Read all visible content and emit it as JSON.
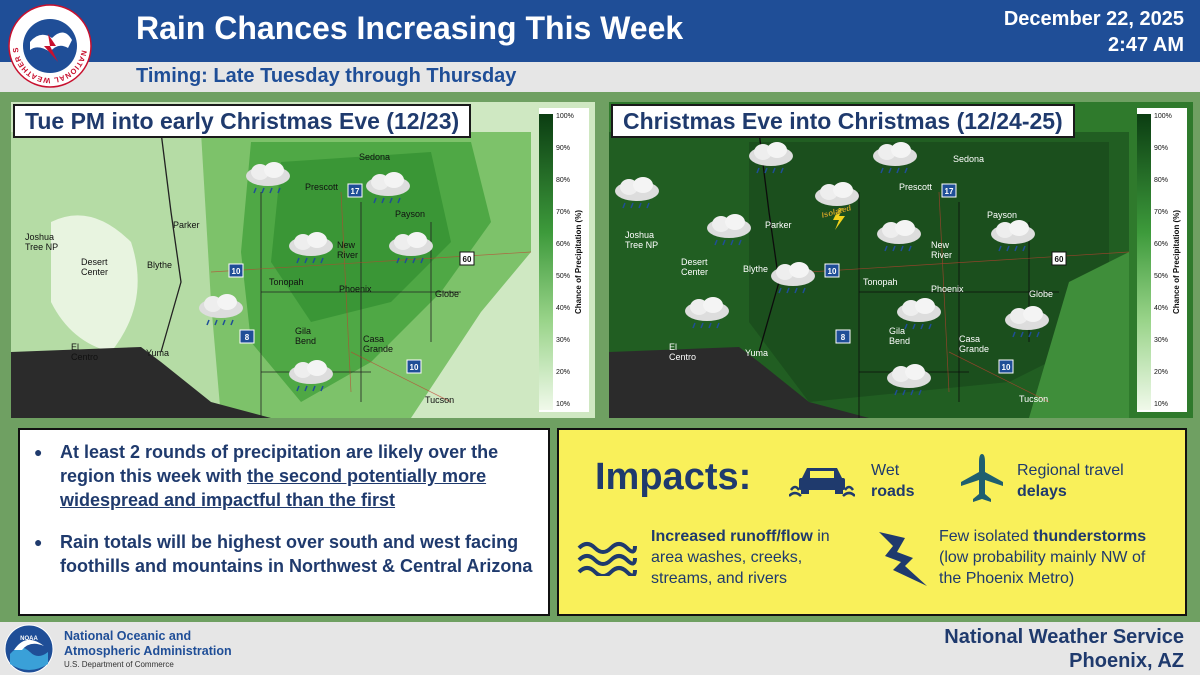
{
  "header": {
    "logo_text": "NATIONAL WEATHER SERVICE",
    "title": "Rain Chances Increasing This Week",
    "date": "December 22, 2025",
    "time": "2:47 AM",
    "subtitle": "Timing: Late Tuesday through Thursday"
  },
  "panels": [
    {
      "title": "Tue PM into early Christmas Eve (12/23)",
      "legend_label": "Chance of Precipitation (%)",
      "legend_ticks": [
        "100%",
        "90%",
        "80%",
        "70%",
        "60%",
        "50%",
        "40%",
        "30%",
        "20%",
        "10%"
      ],
      "towns": [
        "Sedona",
        "Prescott",
        "Payson",
        "Joshua Tree NP",
        "Parker",
        "New River",
        "Desert Center",
        "Blythe",
        "Tonopah",
        "Phoenix",
        "Globe",
        "Gila Bend",
        "Casa Grande",
        "El Centro",
        "Yuma",
        "Tucson"
      ]
    },
    {
      "title": "Christmas Eve into Christmas (12/24-25)",
      "legend_label": "Chance of Precipitation (%)",
      "legend_ticks": [
        "100%",
        "90%",
        "80%",
        "70%",
        "60%",
        "50%",
        "40%",
        "30%",
        "20%",
        "10%"
      ],
      "towns": [
        "Sedona",
        "Prescott",
        "Payson",
        "Joshua Tree NP",
        "Parker",
        "New River",
        "Desert Center",
        "Blythe",
        "Tonopah",
        "Phoenix",
        "Globe",
        "Gila Bend",
        "Casa Grande",
        "El Centro",
        "Yuma",
        "Tucson"
      ],
      "storm_label": "Isolated"
    }
  ],
  "highways": [
    "17",
    "60",
    "10",
    "8",
    "10"
  ],
  "bullets": {
    "b1_pre": "At least 2 rounds of precipitation are likely over the region this week with ",
    "b1_underlined": "the second potentially more widespread and impactful than the first",
    "b2": "Rain totals will be highest over south and west facing foothills and mountains in Northwest & Central Arizona"
  },
  "impacts": {
    "title": "Impacts:",
    "wet_roads_line1": "Wet",
    "wet_roads_line2": "roads",
    "travel_line1": "Regional travel",
    "travel_line2": "delays",
    "runoff_bold": "Increased runoff/flow",
    "runoff_rest1": " in",
    "runoff_line2": "area washes, creeks,",
    "runoff_line3": "streams, and rivers",
    "storm_line1_pre": "Few isolated ",
    "storm_line1_bold": "thunderstorms",
    "storm_line2": "(low probability mainly NW of",
    "storm_line3": "the Phoenix Metro)"
  },
  "footer": {
    "noaa_logo_text": "NOAA",
    "noaa_line1": "National Oceanic and",
    "noaa_line2": "Atmospheric Administration",
    "noaa_dept": "U.S. Department of Commerce",
    "office_line1": "National Weather Service",
    "office_line2": "Phoenix, AZ"
  },
  "colors": {
    "header_blue": "#1f4e97",
    "text_navy": "#1f3a6d",
    "impacts_yellow": "#f9f05a",
    "background_green": "#6fa062"
  }
}
